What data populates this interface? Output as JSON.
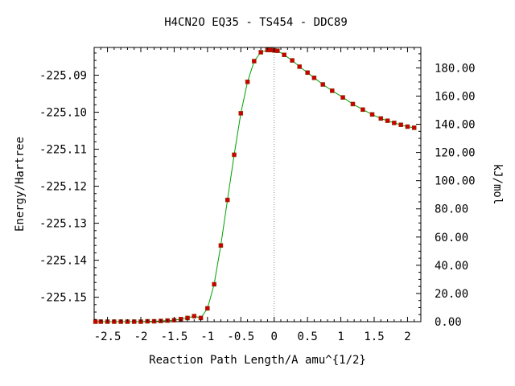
{
  "chart_data": {
    "type": "line",
    "title": "H4CN2O   EQ35 - TS454 - DDC89",
    "xlabel": "Reaction Path Length/A amu^{1/2}",
    "ylabel_left": "Energy/Hartree",
    "ylabel_right": "kJ/mol",
    "xlim": [
      -2.7,
      2.2
    ],
    "ylim_left": [
      -225.1566,
      -225.0825
    ],
    "ylim_right": [
      0,
      194.5
    ],
    "x_ticks": [
      -2.5,
      -2,
      -1.5,
      -1,
      -0.5,
      0,
      0.5,
      1,
      1.5,
      2
    ],
    "x_tick_labels": [
      "-2.5",
      "-2",
      "-1.5",
      "-1",
      "-0.5",
      "0",
      "0.5",
      "1",
      "1.5",
      "2"
    ],
    "y_left_ticks": [
      -225.15,
      -225.14,
      -225.13,
      -225.12,
      -225.11,
      -225.1,
      -225.09
    ],
    "y_left_tick_labels": [
      "-225.15",
      "-225.14",
      "-225.13",
      "-225.12",
      "-225.11",
      "-225.10",
      "-225.09"
    ],
    "y_right_ticks": [
      0,
      20,
      40,
      60,
      80,
      100,
      120,
      140,
      160,
      180
    ],
    "y_right_tick_labels": [
      "0.00",
      "20.00",
      "40.00",
      "60.00",
      "80.00",
      "100.00",
      "120.00",
      "140.00",
      "160.00",
      "180.00"
    ],
    "ts_marker_x": 0,
    "grid": false,
    "colors": {
      "line": "#00a000",
      "point": "#cc0000",
      "ts_line": "#888888"
    },
    "series": [
      {
        "x": [
          -2.68,
          -2.6,
          -2.5,
          -2.4,
          -2.3,
          -2.2,
          -2.1,
          -2.0,
          -1.9,
          -1.8,
          -1.7,
          -1.6,
          -1.5,
          -1.4,
          -1.3,
          -1.2,
          -1.1,
          -1.0,
          -0.9,
          -0.8,
          -0.7,
          -0.6,
          -0.5,
          -0.4,
          -0.3,
          -0.2,
          -0.1,
          -0.05,
          0.0,
          0.05,
          0.15,
          0.27,
          0.38,
          0.5,
          0.6,
          0.73,
          0.87,
          1.03,
          1.18,
          1.33,
          1.47,
          1.6,
          1.7,
          1.8,
          1.9,
          2.0,
          2.1
        ],
        "y": [
          -225.1566,
          -225.1566,
          -225.1566,
          -225.1566,
          -225.1566,
          -225.1566,
          -225.1566,
          -225.1566,
          -225.1565,
          -225.1565,
          -225.1564,
          -225.1563,
          -225.1562,
          -225.1559,
          -225.1556,
          -225.1551,
          -225.1556,
          -225.153,
          -225.1465,
          -225.136,
          -225.1237,
          -225.1115,
          -225.1003,
          -225.0918,
          -225.0862,
          -225.0838,
          -225.0832,
          -225.0832,
          -225.0833,
          -225.0834,
          -225.0845,
          -225.086,
          -225.0877,
          -225.0893,
          -225.0907,
          -225.0925,
          -225.0942,
          -225.096,
          -225.0978,
          -225.0993,
          -225.1006,
          -225.1017,
          -225.1023,
          -225.1029,
          -225.1034,
          -225.1039,
          -225.1042
        ]
      }
    ]
  }
}
